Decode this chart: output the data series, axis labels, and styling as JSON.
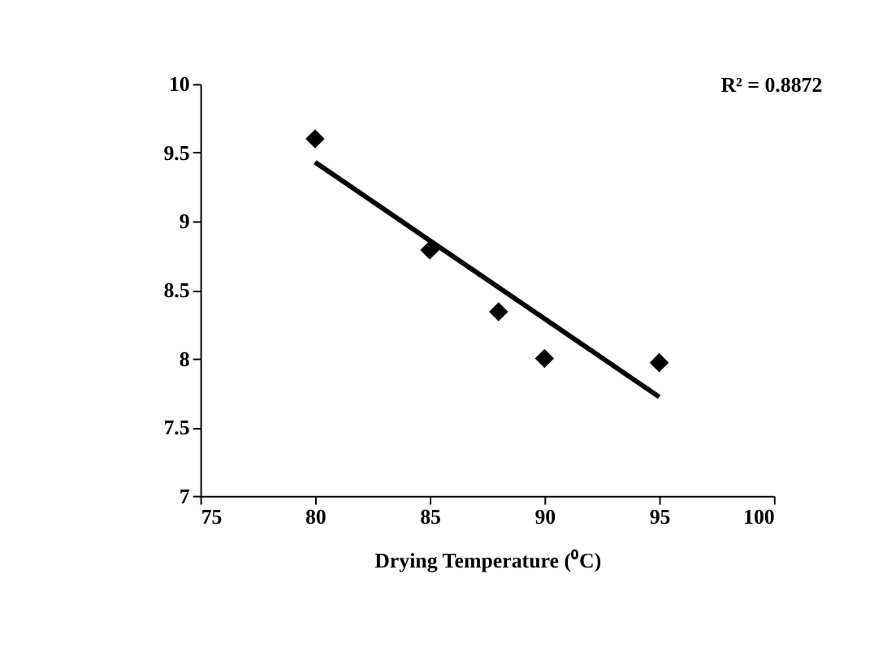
{
  "chart_data": {
    "type": "scatter",
    "xlabel": "Drying Temperature (⁰C)",
    "series": [
      {
        "color": "#000000",
        "x": [
          80,
          85,
          88,
          90,
          95
        ],
        "values": [
          9.6,
          8.79,
          8.34,
          8.0,
          7.97
        ],
        "marker": "diamond"
      },
      {
        "type": "line",
        "color": "#000000",
        "x": [
          80,
          95
        ],
        "values": [
          9.43,
          7.72
        ],
        "line_style": "solid"
      }
    ],
    "annotations": [
      "R² = 0.8872"
    ],
    "xlim": [
      75,
      100
    ],
    "xticks": [
      75,
      80,
      85,
      90,
      95,
      100
    ],
    "ylim": [
      7,
      10
    ],
    "yticks": [
      7,
      7.5,
      8,
      8.5,
      9,
      9.5,
      10
    ],
    "grid": false
  }
}
